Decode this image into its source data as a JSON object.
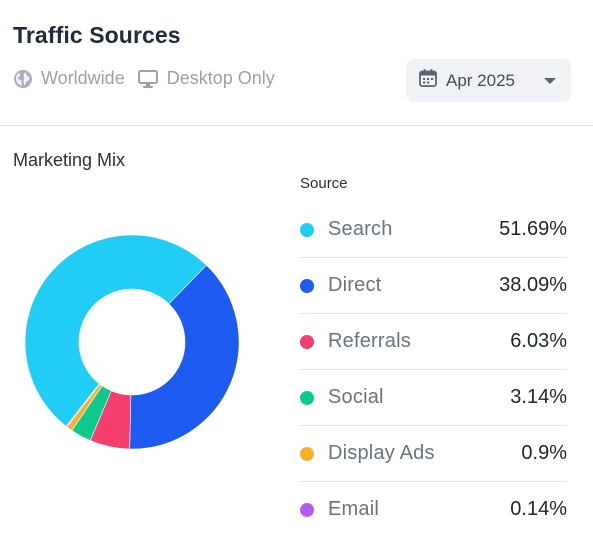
{
  "header": {
    "title": "Traffic Sources",
    "filters": [
      {
        "label": "Worldwide",
        "icon": "globe-icon"
      },
      {
        "label": "Desktop Only",
        "icon": "desktop-icon"
      }
    ],
    "date": {
      "label": "Apr 2025",
      "icon": "calendar-icon",
      "dropdown_icon": "chevron-down-icon"
    }
  },
  "section": {
    "title": "Marketing Mix"
  },
  "legend": {
    "header": "Source"
  },
  "chart_data": {
    "type": "pie",
    "donut": true,
    "categories": [
      "Search",
      "Direct",
      "Referrals",
      "Social",
      "Display Ads",
      "Email"
    ],
    "values": [
      51.69,
      38.09,
      6.03,
      3.14,
      0.9,
      0.14
    ],
    "labels": [
      "51.69%",
      "38.09%",
      "6.03%",
      "3.14%",
      "0.9%",
      "0.14%"
    ],
    "colors": [
      "#22cdf5",
      "#1e5bf0",
      "#f43f6e",
      "#10c98f",
      "#fbb12c",
      "#b35cf0"
    ]
  }
}
